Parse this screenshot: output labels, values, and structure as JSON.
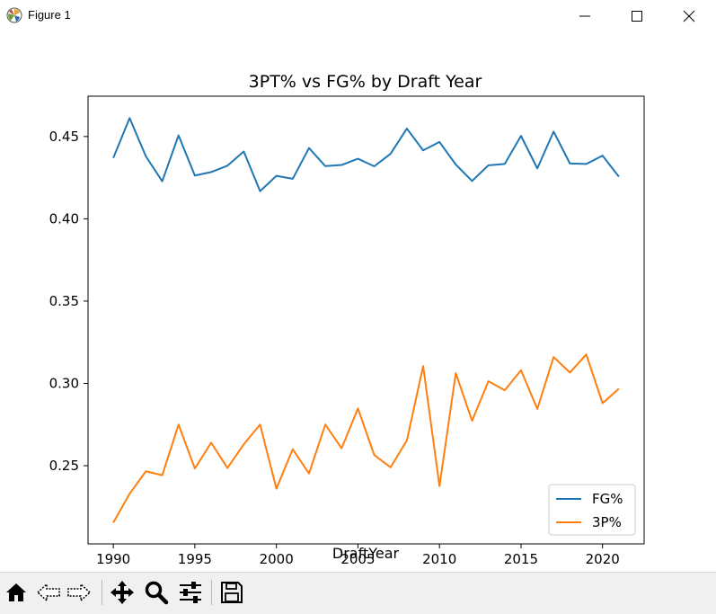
{
  "window": {
    "title": "Figure 1"
  },
  "toolbar": {
    "buttons": [
      "home-icon",
      "back-icon",
      "forward-icon",
      "pan-icon",
      "zoom-icon",
      "configure-subplots-icon",
      "save-icon"
    ],
    "coordinates": ""
  },
  "chart_data": {
    "type": "line",
    "title": "3PT% vs FG% by Draft Year",
    "xlabel": "DraftYear",
    "ylabel": "",
    "xlim": [
      1988.45,
      1992.55
    ],
    "ylim": [
      0.2025,
      0.4745
    ],
    "x_ticks": [
      1990,
      1995,
      2000,
      2005,
      2010,
      2015,
      2020
    ],
    "y_ticks": [
      0.25,
      0.3,
      0.35,
      0.4,
      0.45
    ],
    "y_tick_labels": [
      "0.25",
      "0.30",
      "0.35",
      "0.40",
      "0.45"
    ],
    "grid": false,
    "legend_position": "lower-right",
    "x": [
      1990,
      1991,
      1992,
      1993,
      1994,
      1995,
      1996,
      1997,
      1998,
      1999,
      2000,
      2001,
      2002,
      2003,
      2004,
      2005,
      2006,
      2007,
      2008,
      2009,
      2010,
      2011,
      2012,
      2013,
      2014,
      2015,
      2016,
      2017,
      2018,
      2019,
      2020,
      2021
    ],
    "series": [
      {
        "name": "FG%",
        "color": "#1f77b4",
        "values": [
          0.437,
          0.4612,
          0.4379,
          0.4228,
          0.4507,
          0.4263,
          0.4284,
          0.4323,
          0.4409,
          0.4168,
          0.4261,
          0.4243,
          0.443,
          0.432,
          0.4327,
          0.4365,
          0.4319,
          0.4395,
          0.4548,
          0.4416,
          0.4467,
          0.433,
          0.423,
          0.4325,
          0.4333,
          0.4504,
          0.4306,
          0.453,
          0.4336,
          0.4333,
          0.4384,
          0.4256
        ]
      },
      {
        "name": "3P%",
        "color": "#ff7f0e",
        "values": [
          0.2154,
          0.233,
          0.2466,
          0.2442,
          0.275,
          0.2483,
          0.264,
          0.2486,
          0.263,
          0.275,
          0.236,
          0.26,
          0.2453,
          0.275,
          0.2606,
          0.2848,
          0.2565,
          0.249,
          0.2653,
          0.3105,
          0.2376,
          0.3062,
          0.2773,
          0.3013,
          0.2958,
          0.308,
          0.2845,
          0.316,
          0.3066,
          0.3176,
          0.288,
          0.2968
        ]
      }
    ]
  }
}
